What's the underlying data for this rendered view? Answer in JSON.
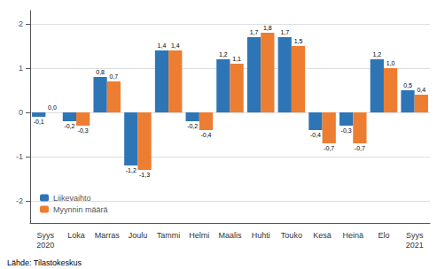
{
  "chart_data": {
    "type": "bar",
    "categories": [
      "Syys\n2020",
      "Loka",
      "Marras",
      "Joulu",
      "Tammi",
      "Helmi",
      "Maalis",
      "Huhti",
      "Touko",
      "Kesä",
      "Heinä",
      "Elo",
      "Syys\n2021"
    ],
    "series": [
      {
        "name": "Liikevaihto",
        "color": "#2e75b6",
        "values": [
          -0.1,
          -0.2,
          0.8,
          -1.2,
          1.4,
          -0.2,
          1.2,
          1.7,
          1.7,
          -0.4,
          -0.3,
          1.2,
          0.5
        ],
        "value_labels": [
          "-0,1",
          "-0,2",
          "0,8",
          "-1,2",
          "1,4",
          "-0,2",
          "1,2",
          "1,7",
          "1,7",
          "-0,4",
          "-0,3",
          "1,2",
          "0,5"
        ]
      },
      {
        "name": "Myynnin määrä",
        "color": "#ed7d31",
        "values": [
          0.0,
          -0.3,
          0.7,
          -1.3,
          1.4,
          -0.4,
          1.1,
          1.8,
          1.5,
          -0.7,
          -0.7,
          1.0,
          0.4
        ],
        "value_labels": [
          "0,0",
          "-0,3",
          "0,7",
          "-1,3",
          "1,4",
          "-0,4",
          "1,1",
          "1,8",
          "1,5",
          "-0,7",
          "-0,7",
          "1,0",
          "0,4"
        ]
      }
    ],
    "ylim": [
      -2.5,
      2.3
    ],
    "yticks": [
      -2,
      -1,
      0,
      1,
      2
    ],
    "grid": true,
    "legend": "lower left",
    "data_labels": true,
    "annotations": [
      "Lähde: Tilastokeskus"
    ]
  }
}
